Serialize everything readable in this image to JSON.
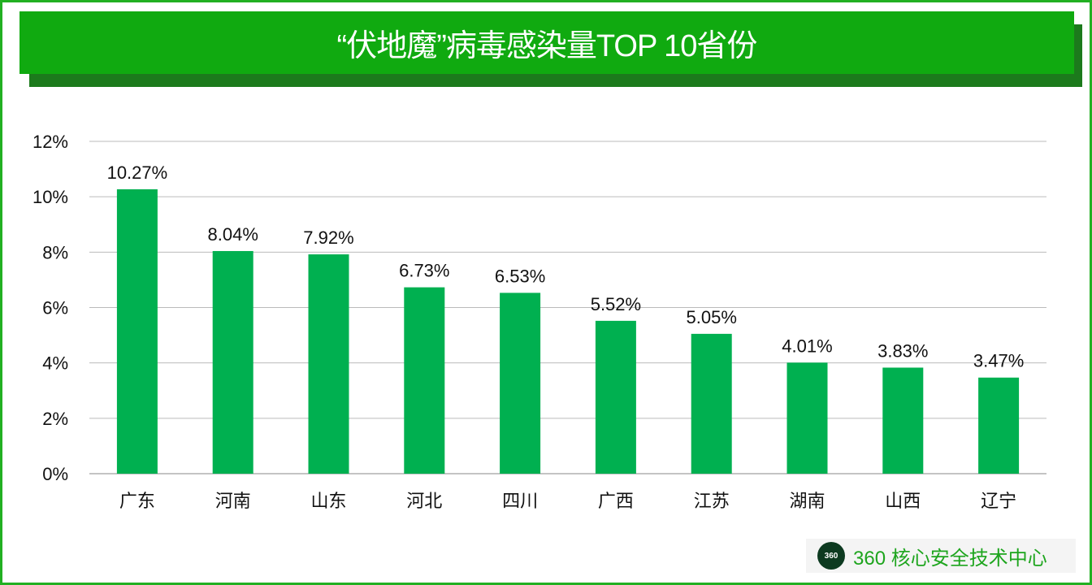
{
  "chart_data": {
    "type": "bar",
    "title": "“伏地魔”病毒感染量TOP 10省份",
    "categories": [
      "广东",
      "河南",
      "山东",
      "河北",
      "四川",
      "广西",
      "江苏",
      "湖南",
      "山西",
      "辽宁"
    ],
    "values": [
      10.27,
      8.04,
      7.92,
      6.73,
      6.53,
      5.52,
      5.05,
      4.01,
      3.83,
      3.47
    ],
    "value_labels": [
      "10.27%",
      "8.04%",
      "7.92%",
      "6.73%",
      "6.53%",
      "5.52%",
      "5.05%",
      "4.01%",
      "3.83%",
      "3.47%"
    ],
    "yticks": [
      "0%",
      "2%",
      "4%",
      "6%",
      "8%",
      "10%",
      "12%"
    ],
    "ylim": [
      0,
      12
    ],
    "grid": true,
    "bar_color": "#00b050"
  },
  "logo": {
    "badge": "360",
    "text": "360 核心安全技术中心"
  }
}
